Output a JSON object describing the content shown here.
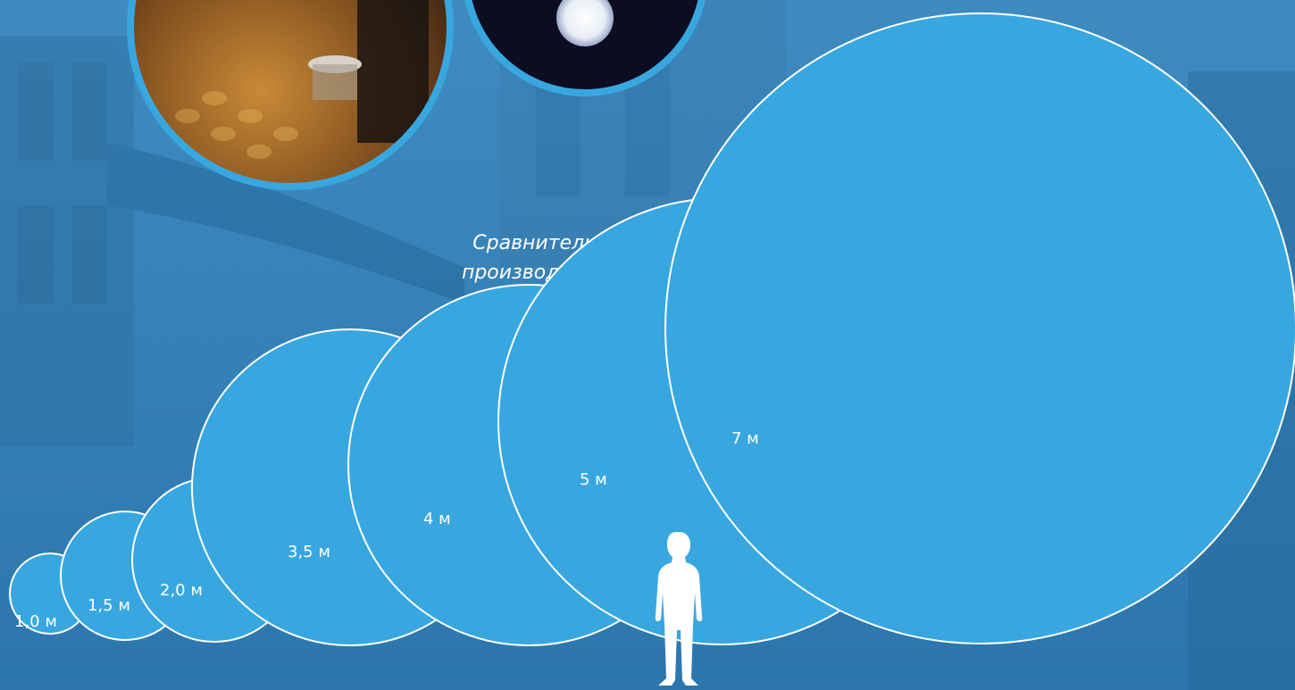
{
  "caption": {
    "line1": "Сравнительные размеры",
    "line2": "производимых гелиосфер"
  },
  "spheres": [
    {
      "label": "1,0 м"
    },
    {
      "label": "1,5 м"
    },
    {
      "label": "2,0 м"
    },
    {
      "label": "3,5 м"
    },
    {
      "label": "4 м"
    },
    {
      "label": "5 м"
    },
    {
      "label": "7 м"
    }
  ],
  "colors": {
    "sphere_fill": "#38a7e0",
    "sphere_stroke": "#ffffff",
    "background": "#2f7fb6"
  },
  "figure": {
    "icon": "person-silhouette-icon"
  }
}
